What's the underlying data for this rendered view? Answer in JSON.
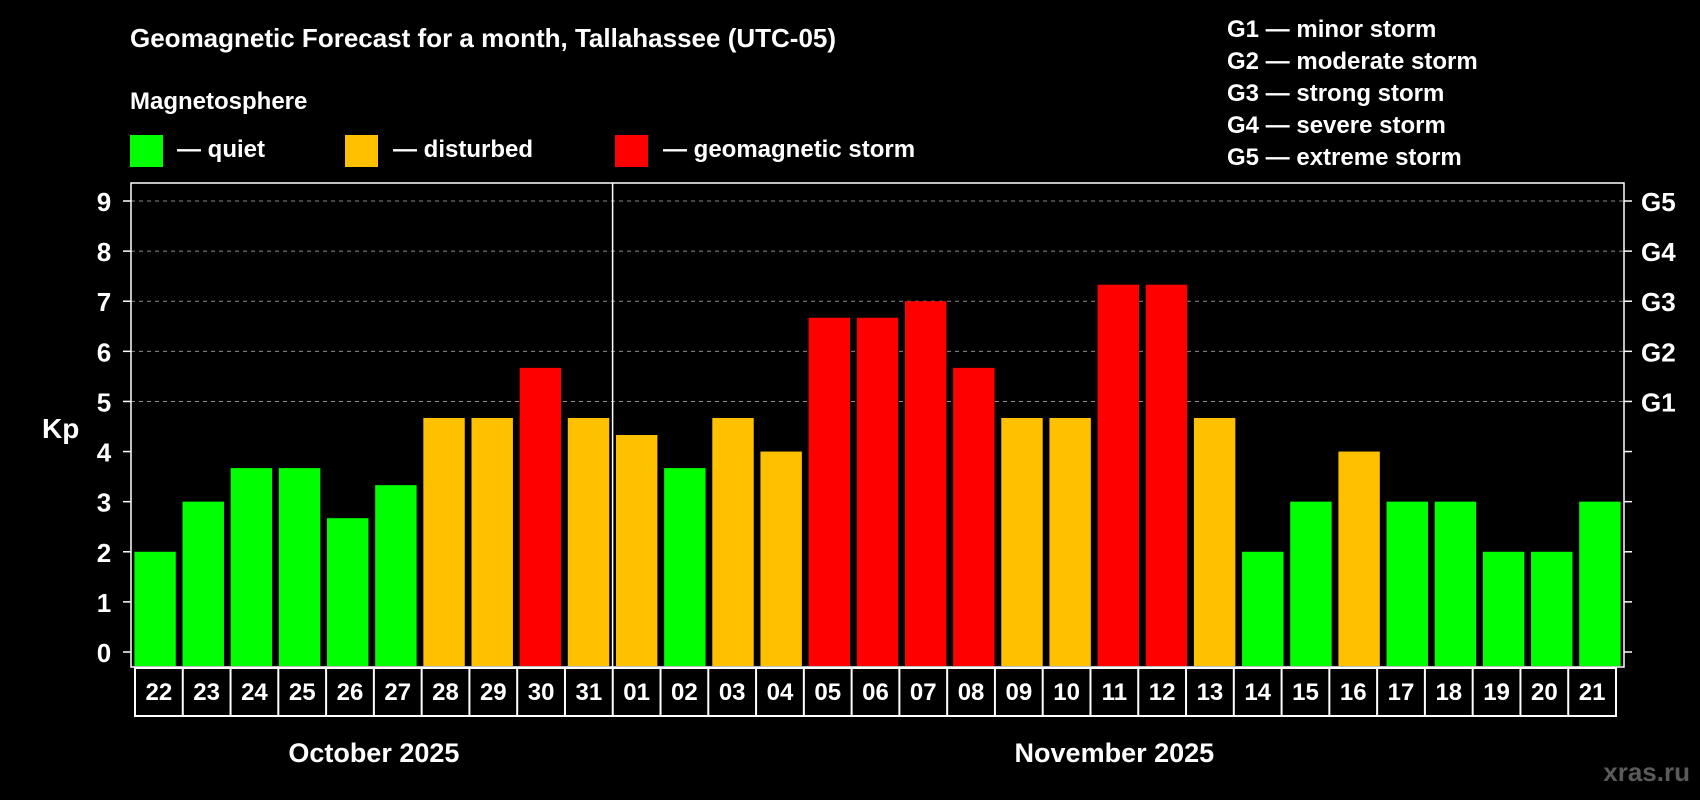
{
  "chart_data": {
    "type": "bar",
    "title": "Geomagnetic Forecast for a month, Tallahassee (UTC-05)",
    "ylabel": "Kp",
    "ylim": [
      0,
      9
    ],
    "yticks": [
      "0",
      "1",
      "2",
      "3",
      "4",
      "5",
      "6",
      "7",
      "8",
      "9"
    ],
    "g_levels": [
      {
        "kp": 5,
        "label": "G1"
      },
      {
        "kp": 6,
        "label": "G2"
      },
      {
        "kp": 7,
        "label": "G3"
      },
      {
        "kp": 8,
        "label": "G4"
      },
      {
        "kp": 9,
        "label": "G5"
      }
    ],
    "categories": [
      "22",
      "23",
      "24",
      "25",
      "26",
      "27",
      "28",
      "29",
      "30",
      "31",
      "01",
      "02",
      "03",
      "04",
      "05",
      "06",
      "07",
      "08",
      "09",
      "10",
      "11",
      "12",
      "13",
      "14",
      "15",
      "16",
      "17",
      "18",
      "19",
      "20",
      "21"
    ],
    "values": [
      2.0,
      3.0,
      3.67,
      3.67,
      2.67,
      3.33,
      4.67,
      4.67,
      5.67,
      4.67,
      4.33,
      3.67,
      4.67,
      4.0,
      6.67,
      6.67,
      7.0,
      5.67,
      4.67,
      4.67,
      7.33,
      7.33,
      4.67,
      2.0,
      3.0,
      4.0,
      3.0,
      3.0,
      2.0,
      2.0,
      3.0
    ],
    "levels": [
      "quiet",
      "quiet",
      "quiet",
      "quiet",
      "quiet",
      "quiet",
      "disturbed",
      "disturbed",
      "storm",
      "disturbed",
      "disturbed",
      "quiet",
      "disturbed",
      "disturbed",
      "storm",
      "storm",
      "storm",
      "storm",
      "disturbed",
      "disturbed",
      "storm",
      "storm",
      "disturbed",
      "quiet",
      "quiet",
      "disturbed",
      "quiet",
      "quiet",
      "quiet",
      "quiet",
      "quiet"
    ],
    "months": [
      {
        "label": "October 2025",
        "start": 0,
        "count": 10
      },
      {
        "label": "November 2025",
        "start": 10,
        "count": 21
      }
    ],
    "month_divider_index": 10
  },
  "legend": {
    "heading": "Magnetosphere",
    "items": [
      {
        "key": "quiet",
        "label": "— quiet",
        "color": "#00ff00"
      },
      {
        "key": "disturbed",
        "label": "— disturbed",
        "color": "#ffc000"
      },
      {
        "key": "storm",
        "label": "— geomagnetic storm",
        "color": "#ff0000"
      }
    ]
  },
  "storm_scale": [
    "G1 — minor storm",
    "G2 — moderate storm",
    "G3 — strong storm",
    "G4 — severe storm",
    "G5 — extreme storm"
  ],
  "watermark": "xras.ru"
}
